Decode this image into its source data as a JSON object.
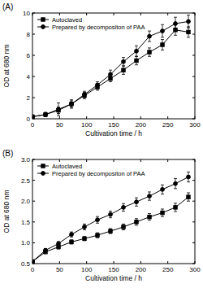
{
  "chart_data": [
    {
      "type": "line",
      "title": "(A)",
      "x_label": "Cultivation time / h",
      "y_label": "OD at 680 nm",
      "x": [
        0,
        24,
        48,
        72,
        96,
        120,
        144,
        168,
        192,
        216,
        240,
        264,
        288
      ],
      "series": [
        {
          "name": "Autoclaved",
          "color": "#000000",
          "marker": "square",
          "line_style": "solid",
          "values": [
            0.2,
            0.4,
            0.8,
            1.4,
            2.2,
            3.0,
            3.8,
            4.6,
            5.5,
            6.3,
            7.0,
            8.4,
            8.2
          ],
          "errors": [
            0.1,
            0.2,
            0.3,
            0.3,
            0.3,
            0.3,
            0.3,
            0.4,
            0.4,
            0.4,
            0.5,
            0.5,
            0.5
          ]
        },
        {
          "name": "Prepared by decompositon of PAA",
          "color": "#000000",
          "marker": "circle",
          "line_style": "solid",
          "values": [
            0.2,
            0.4,
            0.9,
            1.4,
            2.3,
            3.2,
            4.2,
            5.4,
            6.4,
            7.8,
            8.3,
            9.0,
            9.2
          ],
          "errors": [
            0.1,
            0.2,
            0.6,
            0.4,
            0.3,
            0.3,
            0.4,
            0.4,
            0.5,
            0.5,
            0.6,
            0.6,
            0.6
          ]
        }
      ],
      "xlim": [
        0,
        300
      ],
      "xticks": [
        0,
        50,
        100,
        150,
        200,
        250,
        300
      ],
      "ylim": [
        0,
        10
      ],
      "yticks": [
        0,
        2,
        4,
        6,
        8,
        10
      ],
      "grid": false,
      "legend": "upper left"
    },
    {
      "type": "line",
      "title": "(B)",
      "x_label": "Cultivation time / h",
      "y_label": "OD at 680 nm",
      "x": [
        0,
        24,
        48,
        72,
        96,
        120,
        144,
        168,
        192,
        216,
        240,
        264,
        288
      ],
      "series": [
        {
          "name": "Autoclaved",
          "color": "#000000",
          "marker": "square",
          "line_style": "solid",
          "values": [
            0.55,
            0.78,
            0.9,
            1.02,
            1.1,
            1.18,
            1.28,
            1.38,
            1.5,
            1.62,
            1.72,
            1.85,
            2.1
          ],
          "errors": [
            0.03,
            0.04,
            0.05,
            0.05,
            0.05,
            0.06,
            0.06,
            0.07,
            0.08,
            0.08,
            0.09,
            0.1,
            0.1
          ]
        },
        {
          "name": "Prepared by decompositon of PAA",
          "color": "#000000",
          "marker": "circle",
          "line_style": "solid",
          "values": [
            0.55,
            0.82,
            0.98,
            1.2,
            1.38,
            1.55,
            1.68,
            1.85,
            1.98,
            2.12,
            2.28,
            2.42,
            2.58
          ],
          "errors": [
            0.03,
            0.04,
            0.05,
            0.06,
            0.07,
            0.08,
            0.08,
            0.09,
            0.1,
            0.1,
            0.11,
            0.12,
            0.12
          ]
        }
      ],
      "xlim": [
        0,
        300
      ],
      "xticks": [
        0,
        50,
        100,
        150,
        200,
        250,
        300
      ],
      "ylim": [
        0.5,
        3.0
      ],
      "yticks": [
        0.5,
        {
          "value": 1,
          "label": "1.0"
        },
        1.5,
        {
          "value": 2,
          "label": "2.0"
        },
        2.5,
        {
          "value": 3,
          "label": "3.0"
        }
      ],
      "grid": false,
      "legend": "upper left"
    }
  ]
}
